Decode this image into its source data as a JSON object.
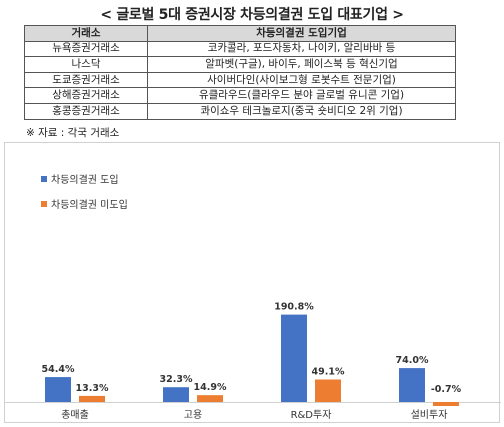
{
  "header": {
    "title": "< 글로벌 5대 증권시장 차등의결권 도입 대표기업 >"
  },
  "table": {
    "columns": [
      "거래소",
      "차등의결권 도입기업"
    ],
    "rows": [
      [
        "뉴욕증권거래소",
        "코카콜라, 포드자동차, 나이키, 알리바바 등"
      ],
      [
        "나스닥",
        "알파벳(구글), 바이두, 페이스북 등 혁신기업"
      ],
      [
        "도쿄증권거래소",
        "사이버다인(사이보그형 로봇수트 전문기업)"
      ],
      [
        "상해증권거래소",
        "유클라우드(클라우드 분야 글로벌 유니콘 기업)"
      ],
      [
        "홍콩증권거래소",
        "콰이쇼우 테크놀로지(중국 숏비디오 2위 기업)"
      ]
    ]
  },
  "source": "※ 자료 : 각국 거래소",
  "colors": {
    "series1": "#4472c4",
    "series2": "#ed7d31"
  },
  "chart_data": {
    "type": "bar",
    "categories": [
      "총매출",
      "고용",
      "R&D투자",
      "설비투자"
    ],
    "series": [
      {
        "name": "차등의결권 도입",
        "values": [
          54.4,
          32.3,
          190.8,
          74.0
        ],
        "labels": [
          "54.4%",
          "32.3%",
          "190.8%",
          "74.0%"
        ]
      },
      {
        "name": "차등의결권 미도입",
        "values": [
          13.3,
          14.9,
          49.1,
          -0.7
        ],
        "labels": [
          "13.3%",
          "14.9%",
          "49.1%",
          "-0.7%"
        ]
      }
    ],
    "legend": "top-left",
    "grid": false
  }
}
